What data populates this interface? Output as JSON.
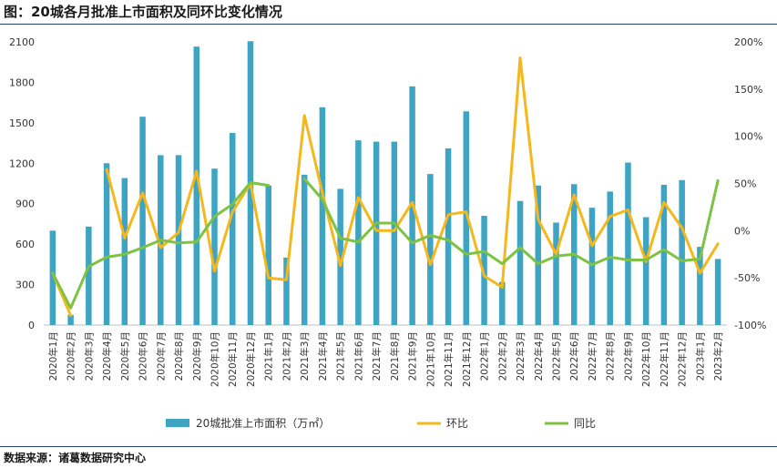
{
  "figure": {
    "title": "图：20城各月批准上市面积及同环比变化情况",
    "source": "数据来源：诸葛数据研究中心"
  },
  "chart_data": {
    "type": "bar",
    "categories": [
      "2020年1月",
      "2020年2月",
      "2020年3月",
      "2020年4月",
      "2020年5月",
      "2020年6月",
      "2020年7月",
      "2020年8月",
      "2020年9月",
      "2020年10月",
      "2020年11月",
      "2020年12月",
      "2021年1月",
      "2021年2月",
      "2021年3月",
      "2021年4月",
      "2021年5月",
      "2021年6月",
      "2021年7月",
      "2021年8月",
      "2021年9月",
      "2021年10月",
      "2021年11月",
      "2021年12月",
      "2022年1月",
      "2022年2月",
      "2022年3月",
      "2022年4月",
      "2022年5月",
      "2022年6月",
      "2022年7月",
      "2022年8月",
      "2022年9月",
      "2022年10月",
      "2022年11月",
      "2022年12月",
      "2023年1月",
      "2023年2月"
    ],
    "series": [
      {
        "name": "20城批准上市面积（万㎡）",
        "axis": "left",
        "kind": "bar",
        "color": "#3ea4c4",
        "values": [
          700,
          75,
          730,
          1200,
          1090,
          1545,
          1260,
          1260,
          2065,
          1160,
          1425,
          2105,
          1035,
          500,
          1115,
          1615,
          1010,
          1370,
          1360,
          1360,
          1770,
          1120,
          1310,
          1585,
          810,
          320,
          920,
          1035,
          760,
          1045,
          870,
          990,
          1205,
          800,
          1040,
          1075,
          580,
          490
        ]
      },
      {
        "name": "环比",
        "axis": "right",
        "kind": "line",
        "color": "#f5b81c",
        "values": [
          -45,
          -90,
          null,
          65,
          -8,
          40,
          -18,
          -2,
          63,
          -43,
          20,
          50,
          -50,
          -52,
          122,
          40,
          -37,
          35,
          0,
          0,
          30,
          -36,
          17,
          20,
          -48,
          -60,
          183,
          12,
          -25,
          38,
          -16,
          15,
          22,
          -33,
          30,
          3,
          -45,
          -14
        ]
      },
      {
        "name": "同比",
        "axis": "right",
        "kind": "line",
        "color": "#7dc242",
        "values": [
          -45,
          -82,
          -38,
          -28,
          -25,
          -18,
          -10,
          -13,
          -12,
          15,
          28,
          51,
          48,
          null,
          55,
          33,
          -8,
          -12,
          8,
          8,
          -13,
          -5,
          -10,
          -25,
          -22,
          -35,
          -18,
          -35,
          -27,
          -25,
          -36,
          -28,
          -31,
          -31,
          -20,
          -32,
          -30,
          53
        ]
      }
    ],
    "y_left": {
      "min": 0,
      "max": 2100,
      "ticks": [
        "0",
        "300",
        "600",
        "900",
        "1200",
        "1500",
        "1800",
        "2100"
      ]
    },
    "y_right": {
      "min": -100,
      "max": 200,
      "ticks": [
        "-100%",
        "-50%",
        "0%",
        "50%",
        "100%",
        "150%",
        "200%"
      ]
    },
    "legend": {
      "position": "bottom",
      "items": [
        "20城批准上市面积（万㎡）",
        "环比",
        "同比"
      ]
    },
    "grid": false
  }
}
